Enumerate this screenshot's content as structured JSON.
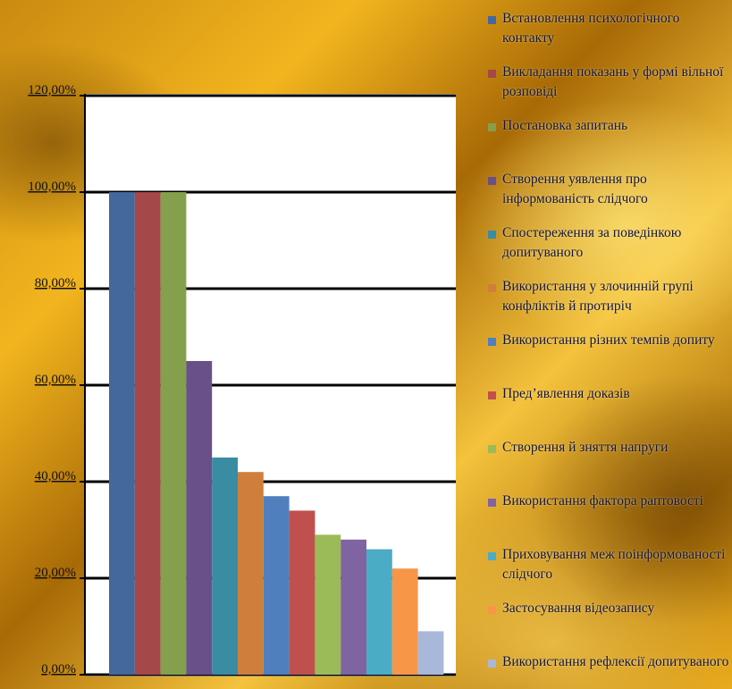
{
  "chart_data": {
    "type": "bar",
    "categories": [
      null
    ],
    "series": [
      {
        "name": "Встановлення психологічного контакту",
        "color": "#43699c",
        "values": [
          100
        ]
      },
      {
        "name": "Викладання показань у формі вільної розповіді",
        "color": "#a6474a",
        "values": [
          100
        ]
      },
      {
        "name": "Постановка запитань",
        "color": "#84a04c",
        "values": [
          100
        ]
      },
      {
        "name": "Створення уявлення про інформованість слідчого",
        "color": "#6a5088",
        "values": [
          65
        ]
      },
      {
        "name": "Спостереження за поведінкою допитуваного",
        "color": "#3a8ca3",
        "values": [
          45
        ]
      },
      {
        "name": "Використання у злочинній групі конфліктів й протиріч",
        "color": "#cf7f3b",
        "values": [
          42
        ]
      },
      {
        "name": "Використання різних темпів допиту",
        "color": "#4f80bd",
        "values": [
          37
        ]
      },
      {
        "name": "Пред’явлення доказів",
        "color": "#c0504d",
        "values": [
          34
        ]
      },
      {
        "name": "Створення й зняття напруги",
        "color": "#9bbb59",
        "values": [
          29
        ]
      },
      {
        "name": "Використання фактора раптовості",
        "color": "#8064a2",
        "values": [
          28
        ]
      },
      {
        "name": "Приховування меж поінформованості слідчого",
        "color": "#4bacc6",
        "values": [
          26
        ]
      },
      {
        "name": "Застосування відеозапису",
        "color": "#f79646",
        "values": [
          22
        ]
      },
      {
        "name": "Використання рефлексії допитуваного",
        "color": "#a9b8d8",
        "values": [
          9
        ]
      }
    ],
    "ylim": [
      0,
      120
    ],
    "yticks": [
      {
        "value": 0,
        "label": "0,00%"
      },
      {
        "value": 20,
        "label": "20,00%"
      },
      {
        "value": 40,
        "label": "40,00%"
      },
      {
        "value": 60,
        "label": "60,00%"
      },
      {
        "value": 80,
        "label": "80,00%"
      },
      {
        "value": 100,
        "label": "100,00%"
      },
      {
        "value": 120,
        "label": "120,00%"
      }
    ],
    "grid": true
  }
}
